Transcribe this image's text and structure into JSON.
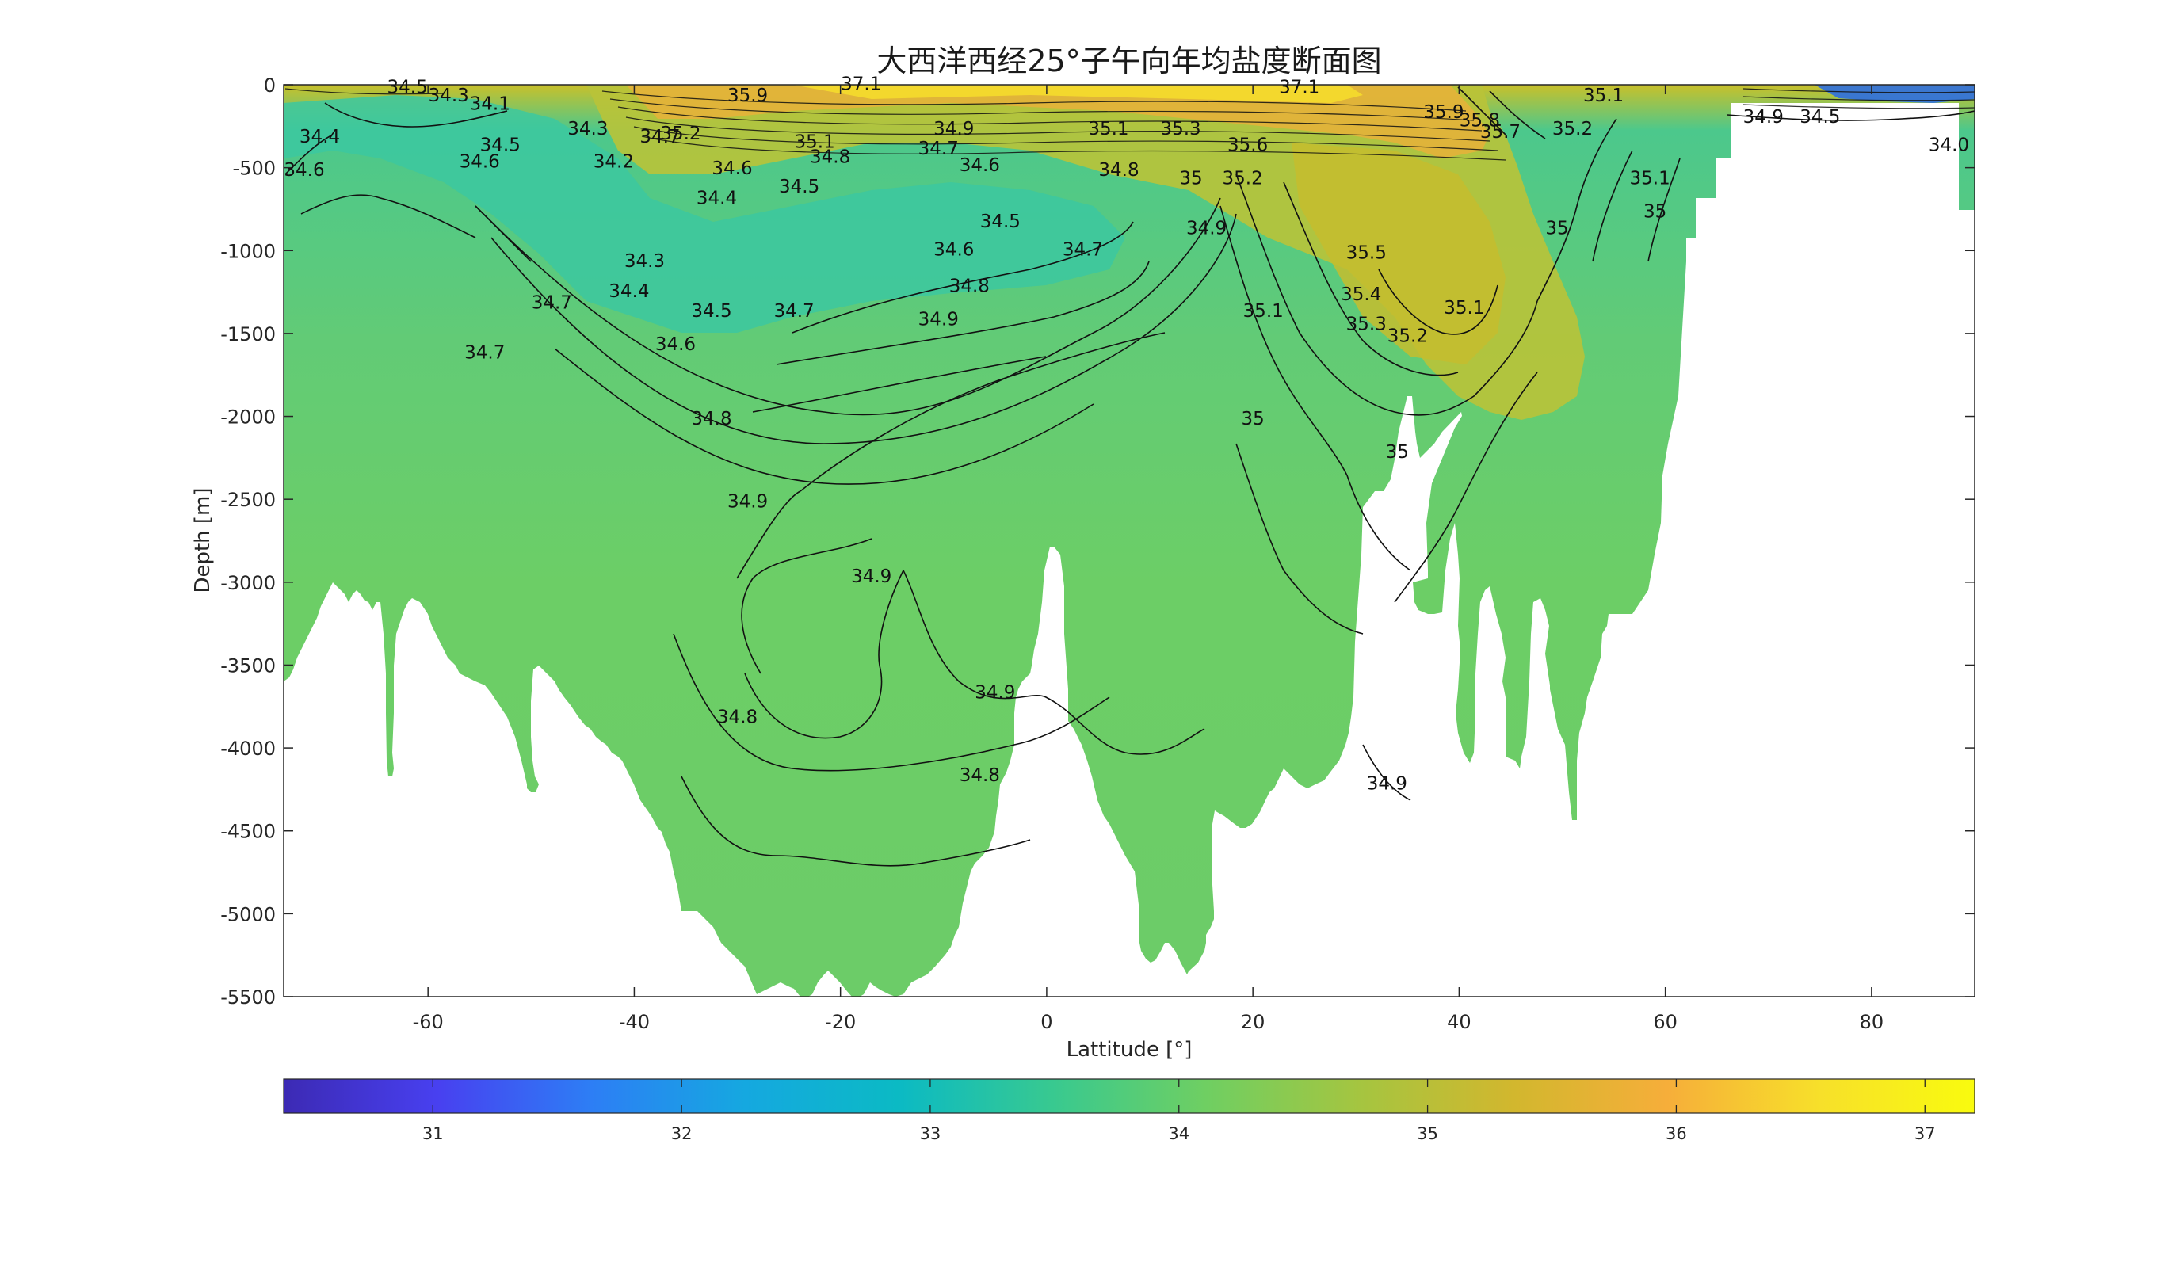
{
  "chart_data": {
    "type": "heatmap",
    "title": "大西洋西经25°子午向年均盐度断面图",
    "xlabel": "Lattitude [°]",
    "ylabel": "Depth [m]",
    "xlim": [
      -74,
      90
    ],
    "ylim": [
      -5500,
      0
    ],
    "x_ticks": [
      -60,
      -40,
      -20,
      0,
      20,
      40,
      60,
      80
    ],
    "x_tick_labels": [
      "-60",
      "-40",
      "-20",
      "0",
      "20",
      "40",
      "60",
      "80"
    ],
    "y_ticks": [
      0,
      -500,
      -1000,
      -1500,
      -2000,
      -2500,
      -3000,
      -3500,
      -4000,
      -4500,
      -5000,
      -5500
    ],
    "y_tick_labels": [
      "0",
      "-500",
      "-1000",
      "-1500",
      "-2000",
      "-2500",
      "-3000",
      "-3500",
      "-4000",
      "-4500",
      "-5000",
      "-5500"
    ],
    "colorbar": {
      "orientation": "horizontal",
      "placement": "bottom",
      "range": [
        30.4,
        37.2
      ],
      "ticks": [
        31,
        32,
        33,
        34,
        35,
        36,
        37
      ],
      "tick_labels": [
        "31",
        "32",
        "33",
        "34",
        "35",
        "36",
        "37"
      ],
      "colormap": [
        "#3c2ab4",
        "#4840f0",
        "#2d7ef5",
        "#15a8e0",
        "#0bbac4",
        "#38c990",
        "#6fcf62",
        "#a5c540",
        "#d2b72e",
        "#f6ae3a",
        "#f7e02a",
        "#f9fb0e"
      ]
    },
    "grid": false,
    "contour_labels": [
      {
        "text": "34.6",
        "lat": -72.0,
        "depth": -550
      },
      {
        "text": "34.4",
        "lat": -70.5,
        "depth": -350
      },
      {
        "text": "34.5",
        "lat": -62.0,
        "depth": -50
      },
      {
        "text": "34.3",
        "lat": -58.0,
        "depth": -100
      },
      {
        "text": "34.1",
        "lat": -54.0,
        "depth": -150
      },
      {
        "text": "34.5",
        "lat": -53.0,
        "depth": -400
      },
      {
        "text": "34.6",
        "lat": -55.0,
        "depth": -500
      },
      {
        "text": "34.7",
        "lat": -48.0,
        "depth": -1350
      },
      {
        "text": "34.7",
        "lat": -54.5,
        "depth": -1650
      },
      {
        "text": "34.3",
        "lat": -39.0,
        "depth": -1100
      },
      {
        "text": "34.4",
        "lat": -40.5,
        "depth": -1280
      },
      {
        "text": "34.5",
        "lat": -32.5,
        "depth": -1400
      },
      {
        "text": "34.6",
        "lat": -36.0,
        "depth": -1600
      },
      {
        "text": "34.2",
        "lat": -42.0,
        "depth": -500
      },
      {
        "text": "34.3",
        "lat": -44.5,
        "depth": -300
      },
      {
        "text": "34.4",
        "lat": -32.0,
        "depth": -720
      },
      {
        "text": "34.5",
        "lat": -24.0,
        "depth": -650
      },
      {
        "text": "34.6",
        "lat": -30.5,
        "depth": -540
      },
      {
        "text": "34.7",
        "lat": -37.5,
        "depth": -350
      },
      {
        "text": "35.2",
        "lat": -35.5,
        "depth": -330
      },
      {
        "text": "35.9",
        "lat": -29.0,
        "depth": -100
      },
      {
        "text": "35.1",
        "lat": -22.5,
        "depth": -380
      },
      {
        "text": "34.8",
        "lat": -21.0,
        "depth": -470
      },
      {
        "text": "34.9",
        "lat": -9.0,
        "depth": -300
      },
      {
        "text": "34.7",
        "lat": -10.5,
        "depth": -420
      },
      {
        "text": "34.6",
        "lat": -6.5,
        "depth": -520
      },
      {
        "text": "34.5",
        "lat": -4.5,
        "depth": -860
      },
      {
        "text": "34.6",
        "lat": -9.0,
        "depth": -1030
      },
      {
        "text": "34.7",
        "lat": 3.5,
        "depth": -1030
      },
      {
        "text": "34.8",
        "lat": -7.5,
        "depth": -1250
      },
      {
        "text": "34.9",
        "lat": -10.5,
        "depth": -1450
      },
      {
        "text": "34.7",
        "lat": -24.5,
        "depth": -1400
      },
      {
        "text": "34.8",
        "lat": -32.5,
        "depth": -2050
      },
      {
        "text": "34.9",
        "lat": -29.0,
        "depth": -2550
      },
      {
        "text": "34.9",
        "lat": -17.0,
        "depth": -3000
      },
      {
        "text": "34.9",
        "lat": -5.0,
        "depth": -3700
      },
      {
        "text": "34.8",
        "lat": -30.0,
        "depth": -3850
      },
      {
        "text": "34.8",
        "lat": -6.5,
        "depth": -4200
      },
      {
        "text": "37.1",
        "lat": -18.0,
        "depth": -30
      },
      {
        "text": "35.1",
        "lat": 6.0,
        "depth": -300
      },
      {
        "text": "34.8",
        "lat": 7.0,
        "depth": -550
      },
      {
        "text": "35",
        "lat": 14.0,
        "depth": -600
      },
      {
        "text": "35.2",
        "lat": 19.0,
        "depth": -600
      },
      {
        "text": "35.6",
        "lat": 19.5,
        "depth": -400
      },
      {
        "text": "35.3",
        "lat": 13.0,
        "depth": -300
      },
      {
        "text": "34.9",
        "lat": 15.5,
        "depth": -900
      },
      {
        "text": "35.1",
        "lat": 21.0,
        "depth": -1400
      },
      {
        "text": "35",
        "lat": 20.0,
        "depth": -2050
      },
      {
        "text": "35",
        "lat": 34.0,
        "depth": -2250
      },
      {
        "text": "34.9",
        "lat": 33.0,
        "depth": -4250
      },
      {
        "text": "37.1",
        "lat": 24.5,
        "depth": -50
      },
      {
        "text": "35.9",
        "lat": 38.5,
        "depth": -200
      },
      {
        "text": "35.5",
        "lat": 31.0,
        "depth": -1050
      },
      {
        "text": "35.4",
        "lat": 30.5,
        "depth": -1300
      },
      {
        "text": "35.3",
        "lat": 31.0,
        "depth": -1480
      },
      {
        "text": "35.2",
        "lat": 35.0,
        "depth": -1550
      },
      {
        "text": "35.1",
        "lat": 40.5,
        "depth": -1380
      },
      {
        "text": "35",
        "lat": 49.5,
        "depth": -900
      },
      {
        "text": "35",
        "lat": 59.0,
        "depth": -800
      },
      {
        "text": "35.1",
        "lat": 58.5,
        "depth": -600
      },
      {
        "text": "35.1",
        "lat": 54.0,
        "depth": -100
      },
      {
        "text": "35.8",
        "lat": 42.0,
        "depth": -250
      },
      {
        "text": "35.7",
        "lat": 44.0,
        "depth": -320
      },
      {
        "text": "35.2",
        "lat": 51.0,
        "depth": -300
      },
      {
        "text": "34.5",
        "lat": 75.0,
        "depth": -230
      },
      {
        "text": "34.9",
        "lat": 69.5,
        "depth": -230
      },
      {
        "text": "34.0",
        "lat": 87.5,
        "depth": -400
      }
    ]
  }
}
